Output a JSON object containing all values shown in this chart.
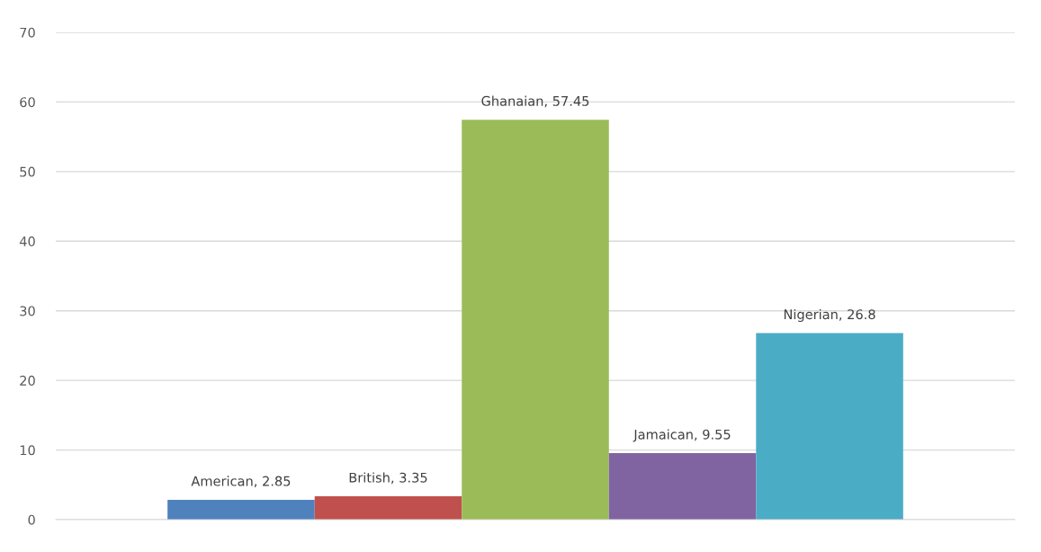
{
  "chart_data": {
    "type": "bar",
    "categories": [
      null
    ],
    "series": [
      {
        "color": "#4f81bd",
        "values": [
          2.85
        ],
        "value_labels": [
          "American, 2.85"
        ]
      },
      {
        "color": "#c0504d",
        "values": [
          3.35
        ],
        "value_labels": [
          "British, 3.35"
        ]
      },
      {
        "color": "#9bbb59",
        "values": [
          57.45
        ],
        "value_labels": [
          "Ghanaian, 57.45"
        ]
      },
      {
        "color": "#8064a2",
        "values": [
          9.55
        ],
        "value_labels": [
          "Jamaican, 9.55"
        ]
      },
      {
        "color": "#4bacc6",
        "values": [
          26.8
        ],
        "value_labels": [
          "Nigerian, 26.8"
        ]
      }
    ],
    "ylim": [
      0,
      70
    ],
    "yticks": [
      0,
      10,
      20,
      30,
      40,
      50,
      60,
      70
    ],
    "grid": "y",
    "tick_labels": "y"
  }
}
